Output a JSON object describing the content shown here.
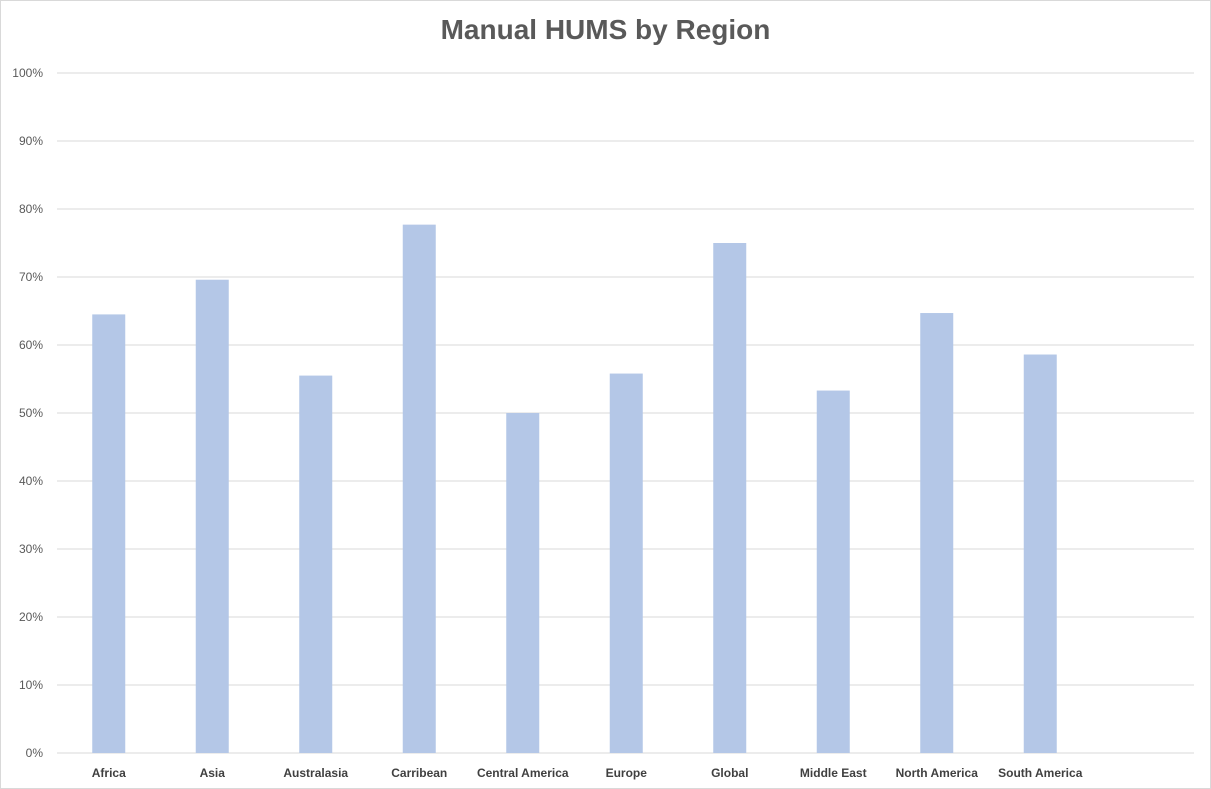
{
  "chart_data": {
    "type": "bar",
    "title": "Manual HUMS by Region",
    "categories": [
      "Africa",
      "Asia",
      "Australasia",
      "Carribean",
      "Central America",
      "Europe",
      "Global",
      "Middle East",
      "North America",
      "South America"
    ],
    "series": [
      {
        "values": [
          64.5,
          69.6,
          55.5,
          77.7,
          50.0,
          55.8,
          75.0,
          53.3,
          64.7,
          58.6
        ]
      }
    ],
    "ylim": [
      0,
      100
    ],
    "yticks": [
      "0%",
      "10%",
      "20%",
      "30%",
      "40%",
      "50%",
      "60%",
      "70%",
      "80%",
      "90%",
      "100%"
    ],
    "grid": true,
    "legend": "none",
    "colors": {
      "bar": "#b4c7e7",
      "grid": "#d9d9d9",
      "title": "#595959"
    }
  }
}
